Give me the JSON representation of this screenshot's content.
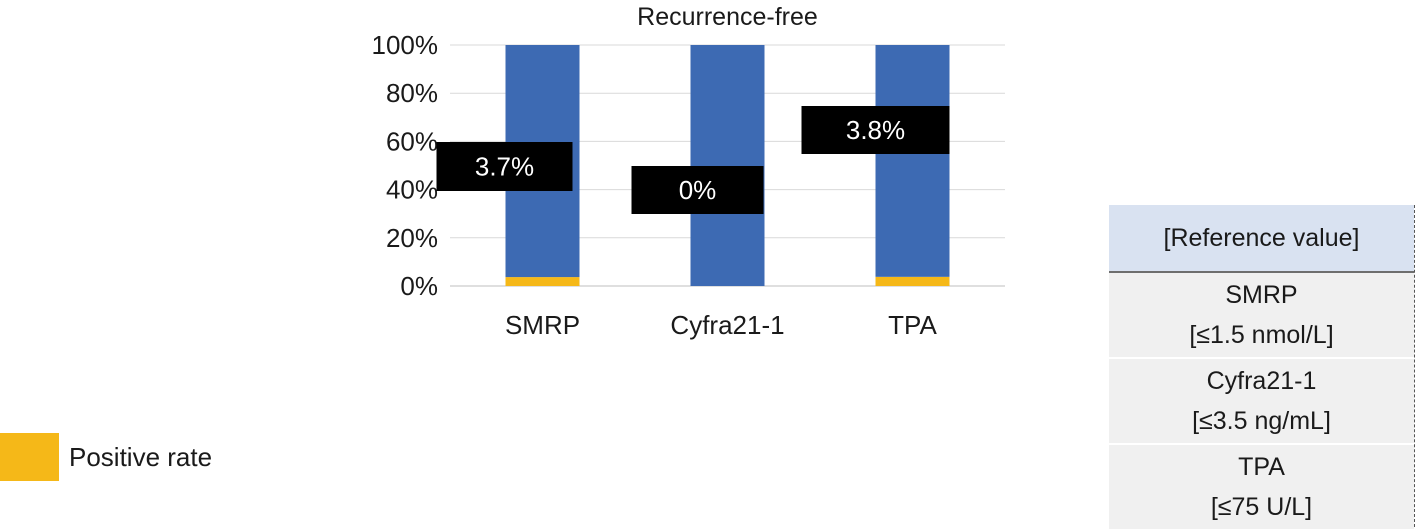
{
  "chart_data": {
    "type": "bar",
    "stacked": true,
    "title": "Recurrence-free",
    "categories": [
      "SMRP",
      "Cyfra21-1",
      "TPA"
    ],
    "series": [
      {
        "name": "Positive rate",
        "color": "#f5b818",
        "values": [
          3.7,
          0,
          3.8
        ]
      },
      {
        "color": "#3d6ab3",
        "values": [
          96.3,
          100,
          96.2
        ]
      }
    ],
    "data_labels": [
      "3.7%",
      "0%",
      "3.8%"
    ],
    "y_ticks": [
      "0%",
      "20%",
      "40%",
      "60%",
      "80%",
      "100%"
    ],
    "ylim": [
      0,
      100
    ],
    "grid": true,
    "legend_position": "bottom-left"
  },
  "legend": {
    "label": "Positive rate",
    "color": "#f5b818"
  },
  "reference_table": {
    "header": "[Reference value]",
    "rows": [
      {
        "name": "SMRP",
        "value": "[≤1.5 nmol/L]"
      },
      {
        "name": "Cyfra21-1",
        "value": "[≤3.5 ng/mL]"
      },
      {
        "name": "TPA",
        "value": "[≤75 U/L]"
      }
    ]
  }
}
